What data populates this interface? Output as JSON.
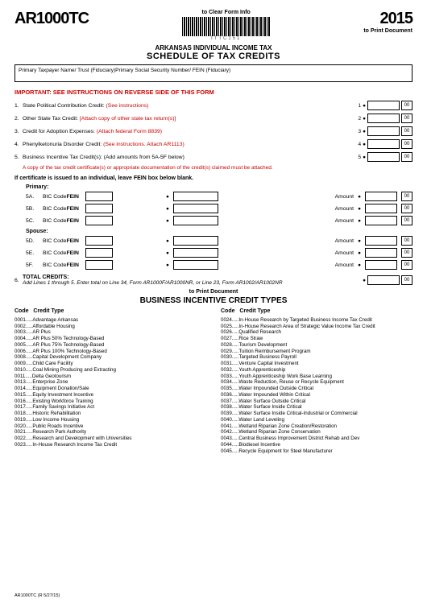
{
  "header": {
    "form_code": "AR1000TC",
    "year": "2015",
    "clear_link": "to Clear Form Info",
    "print_link": "to Print Document",
    "barcode_label": "ITTC151"
  },
  "titles": {
    "line1": "ARKANSAS INDIVIDUAL INCOME TAX",
    "line2": "SCHEDULE OF TAX CREDITS"
  },
  "name_box": "Primary Taxpayer Name/ Trust (Fiduciary)Primary Social Security Number/ FEIN (Fiduciary)",
  "important": "IMPORTANT: SEE INSTRUCTIONS ON REVERSE SIDE OF THIS FORM",
  "credits": [
    {
      "n": "1.",
      "text": "State Political Contribution Credit: ",
      "red": "(See instructions)",
      "rn": "1"
    },
    {
      "n": "2.",
      "text": "Other State Tax Credit: ",
      "red": "[Attach copy of other state tax return(s)]",
      "rn": "2"
    },
    {
      "n": "3.",
      "text": "Credit for Adoption Expenses: ",
      "red": "(Attach federal Form 8839)",
      "rn": "3"
    },
    {
      "n": "4.",
      "text": "Phenylketonuria Disorder Credit: ",
      "red": "(See instructions. Attach AR1113)",
      "rn": "4"
    },
    {
      "n": "5.",
      "text": "Business Incentive Tax Credit(s): (Add amounts from 5A-5F below)",
      "red": "",
      "rn": "5"
    }
  ],
  "line5_note": "A copy of the tax credit certificate(s) or appropriate documentation of the credit(s) claimed must be attached.",
  "cert_note": "If certificate is issued to an individual, leave FEIN box below blank.",
  "primary_label": "Primary:",
  "spouse_label": "Spouse:",
  "bic_label": "BIC Code",
  "fein_label": "FEIN",
  "amount_label": "Amount",
  "primary_rows": [
    "5A.",
    "5B.",
    "5C."
  ],
  "spouse_rows": [
    "5D.",
    "5E.",
    "5F."
  ],
  "total": {
    "n": "6.",
    "head": "TOTAL CREDITS:",
    "sub": "Add Lines 1 through 5. Enter total on Line 34, Form AR1000F/AR1000NR, or Line 23, Form AR1002/AR1002NR"
  },
  "print_link2": "to Print Document",
  "bict_title": "BUSINESS INCENTIVE CREDIT TYPES",
  "codes_header_code": "Code",
  "codes_header_type": "Credit Type",
  "codes_left": [
    "0001.....Advantage Arkansas",
    "0002.....Affordable Housing",
    "0003.....AR Plus",
    "0004.....AR Plus 50% Technology-Based",
    "0005.....AR Plus 75% Technology-Based",
    "0006.....AR Plus 100% Technology-Based",
    "0008.....Capital Development Company",
    "0009.....Child Care Facility",
    "0010.....Coal Mining Producing and Extracting",
    "0011.....Delta Geotourism",
    "0013.....Enterprise Zone",
    "0014.....Equipment Donation/Sale",
    "0015.....Equity Investment Incentive",
    "0016.....Existing Workforce Training",
    "0017.....Family Savings Initiative Act",
    "0018.....Historic Rehabilitation",
    "0019.....Low Income Housing",
    "0020.....Public Roads Incentive",
    "0021.....Research Park Authority",
    "0022.....Research and Development with Universities",
    "0023.....In-House Research Income Tax Credit"
  ],
  "codes_right": [
    "0024.....In-House Research by Targeted Business Income Tax Credit",
    "0025.....In-House Research Area of Strategic Value Income Tax Credit",
    "0026.....Qualified Research",
    "0027.....Rice Straw",
    "0028.....Tourism Development",
    "0029.....Tuition Reimbursement Program",
    "0030.....Targeted Business Payroll",
    "0031.....Venture Capital Investment",
    "0032.....Youth Apprenticeship",
    "0033.....Youth Apprenticeship Work Base Learning",
    "0034.....Waste Reduction, Reuse or Recycle Equipment",
    "0035.....Water Impounded Outside Critical",
    "0036.....Water Impounded Within Critical",
    "0037.....Water Surface Outside Critical",
    "0038.....Water Surface Inside Critical",
    "0039.....Water Surface Inside Critical-Industrial or Commercial",
    "0040.....Water Land Leveling",
    "0041.....Wetland Riparian Zone Creation/Restoration",
    "0042.....Wetland Riparian Zone Conservation",
    "0043.....Central Business Improvement District Rehab and Dev",
    "0044.....Biodiesel Incentive",
    "0045.....Recycle Equipment for Steel Manufacturer"
  ],
  "footer": "AR1000TC (R 5/27/15)",
  "cents": "00"
}
